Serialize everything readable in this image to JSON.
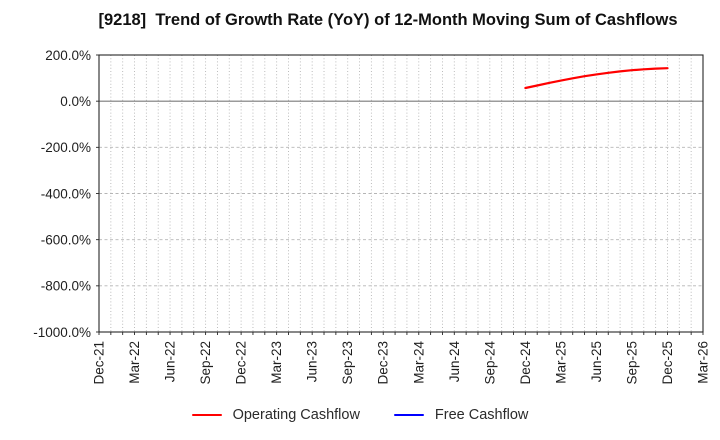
{
  "header": {
    "title": "[9218]  Trend of Growth Rate (YoY) of 12-Month Moving Sum of Cashflows"
  },
  "chart_data": {
    "type": "line",
    "title": "[9218]  Trend of Growth Rate (YoY) of 12-Month Moving Sum of Cashflows",
    "xlabel": "",
    "ylabel": "",
    "ylim": [
      -1000,
      200
    ],
    "y_ticks": [
      200,
      0,
      -200,
      -400,
      -600,
      -800,
      -1000
    ],
    "y_tick_labels": [
      "200.0%",
      "0.0%",
      "-200.0%",
      "-400.0%",
      "-600.0%",
      "-800.0%",
      "-1000.0%"
    ],
    "x_tick_labels": [
      "Dec-21",
      "Mar-22",
      "Jun-22",
      "Sep-22",
      "Dec-22",
      "Mar-23",
      "Jun-23",
      "Sep-23",
      "Dec-23",
      "Mar-24",
      "Jun-24",
      "Sep-24",
      "Dec-24",
      "Mar-25",
      "Jun-25",
      "Sep-25",
      "Dec-25",
      "Mar-26"
    ],
    "x_label_every_months": 3,
    "x_total_month_intervals": 51,
    "grid": true,
    "gridline_style": {
      "vertical": "dotted-monthly",
      "horizontal": "dashed-every-200pct",
      "zero_line": "solid"
    },
    "legend_position": "bottom-center",
    "series": [
      {
        "name": "Operating Cashflow",
        "color": "#ff0000",
        "start_month_index": 36,
        "x": [
          "Dec-24",
          "Jan-25",
          "Feb-25",
          "Mar-25",
          "Apr-25",
          "May-25",
          "Jun-25",
          "Jul-25",
          "Aug-25",
          "Sep-25",
          "Oct-25",
          "Nov-25",
          "Dec-25"
        ],
        "values": [
          57,
          68,
          79,
          89,
          99,
          108,
          116,
          123,
          129,
          134,
          138,
          141,
          143
        ]
      },
      {
        "name": "Free Cashflow",
        "color": "#0000ff",
        "start_month_index": null,
        "x": [],
        "values": []
      }
    ]
  },
  "legend": {
    "items": [
      {
        "label": "Operating Cashflow",
        "color": "#ff0000"
      },
      {
        "label": "Free Cashflow",
        "color": "#0000ff"
      }
    ]
  },
  "colors": {
    "background": "#ffffff",
    "frame": "#262626",
    "grid": "#b5b5b5",
    "zero_line": "#7a7a7a",
    "tick_text": "#1f1f1f",
    "title_text": "#111111",
    "operating": "#ff0000",
    "free": "#0000ff"
  }
}
